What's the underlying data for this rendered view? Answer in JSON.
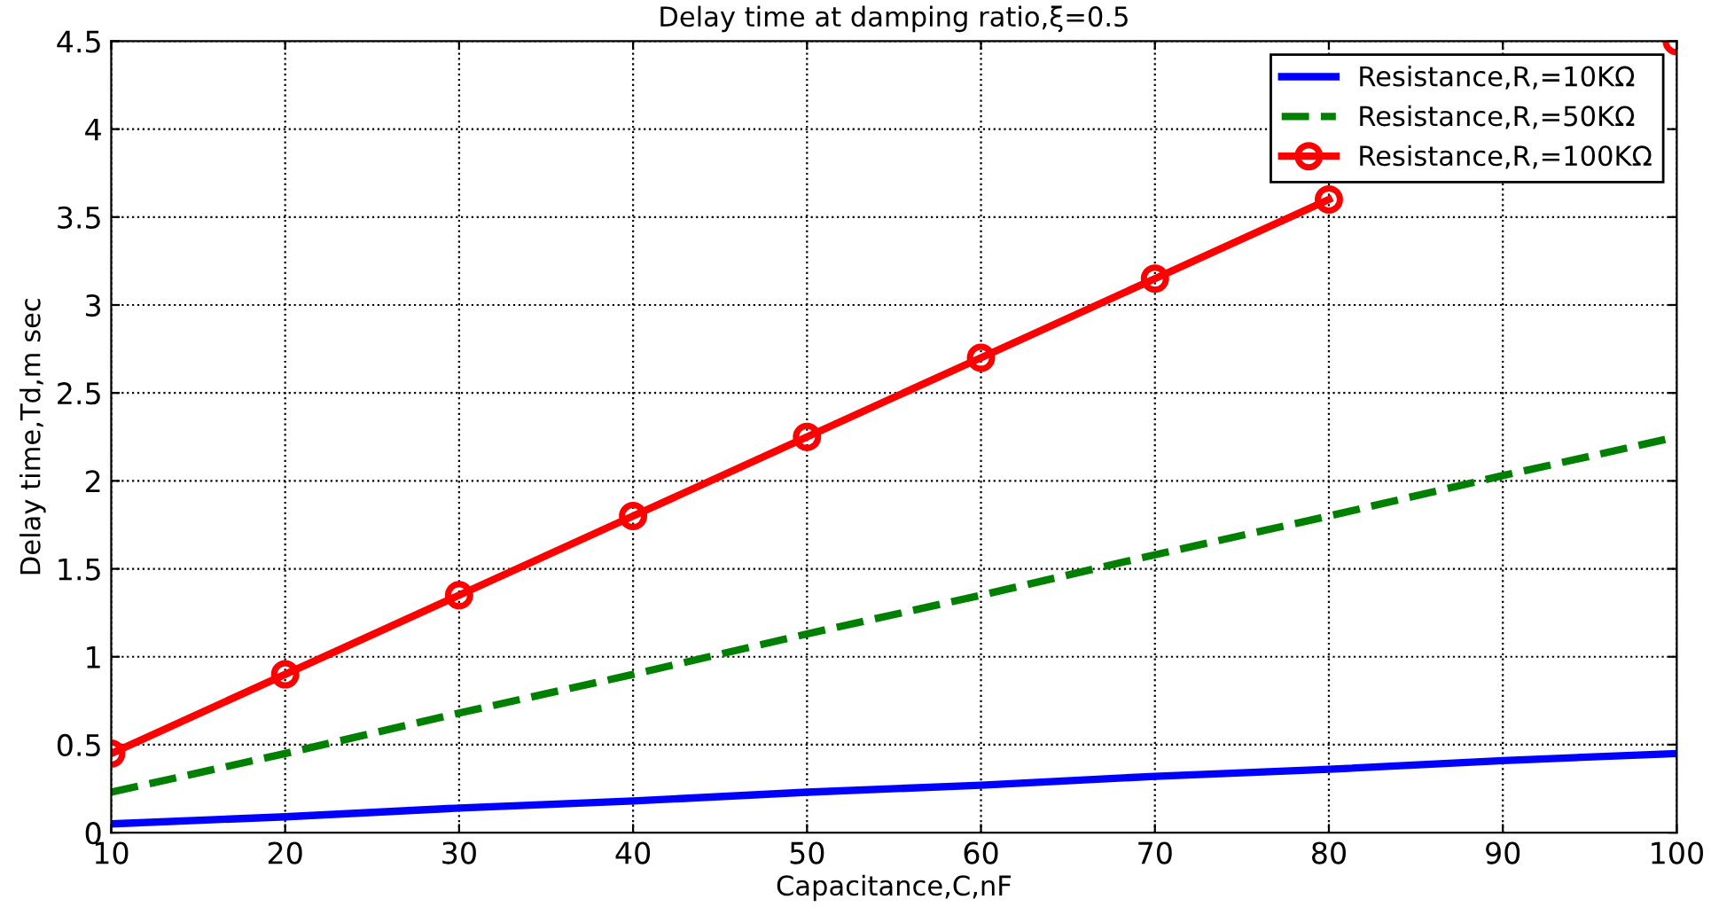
{
  "chart_data": {
    "type": "line",
    "title": "Delay time at damping ratio,ξ=0.5",
    "xlabel": "Capacitance,C,nF",
    "ylabel": "Delay time,Td,m sec",
    "x": [
      10,
      20,
      30,
      40,
      50,
      60,
      70,
      80,
      90,
      100
    ],
    "series": [
      {
        "name": "Resistance,R,=10KΩ",
        "color": "#0000ff",
        "line_style": "solid",
        "marker": "none",
        "values": [
          0.05,
          0.09,
          0.14,
          0.18,
          0.23,
          0.27,
          0.32,
          0.36,
          0.41,
          0.45
        ]
      },
      {
        "name": "Resistance,R,=50KΩ",
        "color": "#008000",
        "line_style": "dashed",
        "marker": "none",
        "values": [
          0.23,
          0.45,
          0.68,
          0.9,
          1.13,
          1.35,
          1.58,
          1.8,
          2.03,
          2.25
        ]
      },
      {
        "name": "Resistance,R,=100KΩ",
        "color": "#ff0000",
        "line_style": "solid",
        "marker": "circle",
        "values": [
          0.45,
          0.9,
          1.35,
          1.8,
          2.25,
          2.7,
          3.15,
          3.6,
          null,
          4.5
        ]
      }
    ],
    "xlim": [
      10,
      100
    ],
    "xticks": [
      10,
      20,
      30,
      40,
      50,
      60,
      70,
      80,
      90,
      100
    ],
    "ylim": [
      0,
      4.5
    ],
    "yticks": [
      0,
      0.5,
      1,
      1.5,
      2,
      2.5,
      3,
      3.5,
      4,
      4.5
    ],
    "grid": true,
    "legend": "top right"
  }
}
